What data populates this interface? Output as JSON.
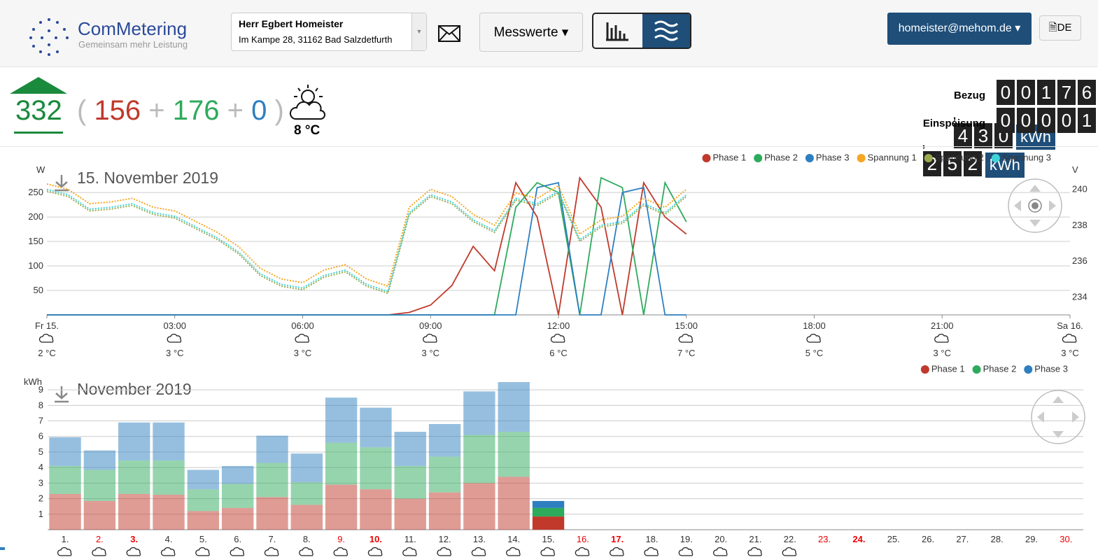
{
  "header": {
    "logo": "ComMetering",
    "slogan": "Gemeinsam mehr Leistung",
    "customer_name": "Herr Egbert Homeister",
    "customer_address": "Im Kampe 28, 31162 Bad Salzdetfurth",
    "menu": "Messwerte",
    "user": "homeister@mehom.de",
    "language": "DE"
  },
  "summary": {
    "total": "332",
    "phase1": "156",
    "phase2": "176",
    "phase3": "0",
    "temperature": "8 °C"
  },
  "meters": [
    {
      "label": "Bezug",
      "integer": "00176",
      "decimal": "430",
      "unit": "kWh"
    },
    {
      "label": "Einspeisung",
      "integer": "00001",
      "decimal": "252",
      "unit": "kWh"
    }
  ],
  "chart_data": [
    {
      "type": "line",
      "title": "15. November 2019",
      "y_label": "W",
      "y2_label": "V",
      "x": [
        0,
        0.5,
        1,
        1.5,
        2,
        2.5,
        3,
        3.5,
        4,
        4.5,
        5,
        5.5,
        6,
        6.5,
        7,
        7.5,
        8,
        8.5,
        9,
        9.5,
        10,
        10.5,
        11,
        11.5,
        12,
        12.5,
        13,
        13.5,
        14,
        14.5,
        15
      ],
      "xlim": [
        0,
        24
      ],
      "xticks": [
        {
          "value": 0,
          "label": "Fr 15."
        },
        {
          "value": 3,
          "label": "03:00"
        },
        {
          "value": 6,
          "label": "06:00"
        },
        {
          "value": 9,
          "label": "09:00"
        },
        {
          "value": 12,
          "label": "12:00"
        },
        {
          "value": 15,
          "label": "15:00"
        },
        {
          "value": 18,
          "label": "18:00"
        },
        {
          "value": 21,
          "label": "21:00"
        },
        {
          "value": 24,
          "label": "Sa 16."
        }
      ],
      "weather": [
        "2 °C",
        "3 °C",
        "3 °C",
        "3 °C",
        "6 °C",
        "7 °C",
        "5 °C",
        "3 °C",
        "3 °C"
      ],
      "ylim": [
        0,
        293
      ],
      "yticks": [
        50,
        100,
        150,
        200,
        250
      ],
      "y2lim": [
        233,
        241
      ],
      "y2ticks": [
        234,
        236,
        238,
        240
      ],
      "grid": true,
      "legend": "top-right",
      "series": [
        {
          "name": "Phase 1",
          "color": "#c0392b",
          "values": [
            0,
            0,
            0,
            0,
            0,
            0,
            0,
            0,
            0,
            0,
            0,
            0,
            0,
            0,
            0,
            0,
            0,
            5,
            20,
            60,
            140,
            90,
            270,
            200,
            0,
            280,
            220,
            0,
            270,
            200,
            165
          ]
        },
        {
          "name": "Phase 2",
          "color": "#2eaa5c",
          "values": [
            0,
            0,
            0,
            0,
            0,
            0,
            0,
            0,
            0,
            0,
            0,
            0,
            0,
            0,
            0,
            0,
            0,
            0,
            0,
            0,
            0,
            0,
            220,
            270,
            250,
            0,
            280,
            260,
            0,
            270,
            190
          ]
        },
        {
          "name": "Phase 3",
          "color": "#2e7fc0",
          "values": [
            0,
            0,
            0,
            0,
            0,
            0,
            0,
            0,
            0,
            0,
            0,
            0,
            0,
            0,
            0,
            0,
            0,
            0,
            0,
            0,
            0,
            0,
            0,
            260,
            270,
            0,
            0,
            250,
            260,
            0,
            0
          ]
        },
        {
          "name": "Spannung 1",
          "color": "#f5a623",
          "axis": "y2",
          "style": "dotted",
          "values": [
            240.3,
            240.0,
            239.2,
            239.3,
            239.5,
            239.0,
            238.8,
            238.2,
            237.6,
            236.8,
            235.6,
            235.0,
            234.8,
            235.5,
            235.8,
            235.0,
            234.6,
            239.0,
            240.0,
            239.6,
            238.6,
            238.0,
            239.8,
            239.5,
            240.2,
            237.5,
            238.3,
            238.5,
            239.5,
            239.0,
            240.0
          ]
        },
        {
          "name": "Spannung 2",
          "color": "#9aab4f",
          "axis": "y2",
          "style": "dotted",
          "values": [
            239.9,
            239.6,
            238.8,
            238.9,
            239.1,
            238.6,
            238.4,
            237.8,
            237.2,
            236.4,
            235.2,
            234.6,
            234.4,
            235.1,
            235.4,
            234.6,
            234.2,
            238.6,
            239.6,
            239.2,
            238.2,
            237.6,
            239.4,
            239.1,
            239.8,
            237.1,
            237.9,
            238.1,
            239.1,
            238.6,
            239.6
          ]
        },
        {
          "name": "Spannung 3",
          "color": "#3fd3d8",
          "axis": "y2",
          "style": "dotted",
          "values": [
            240.0,
            239.7,
            238.9,
            239.0,
            239.2,
            238.7,
            238.5,
            237.9,
            237.3,
            236.5,
            235.3,
            234.7,
            234.5,
            235.2,
            235.5,
            234.7,
            234.3,
            238.7,
            239.7,
            239.3,
            238.3,
            237.7,
            239.5,
            239.2,
            239.9,
            237.2,
            238.0,
            238.2,
            239.2,
            238.7,
            239.7
          ]
        }
      ]
    },
    {
      "type": "stacked_bar",
      "title": "November 2019",
      "y_label": "kWh",
      "categories": [
        "1.",
        "2.",
        "3.",
        "4.",
        "5.",
        "6.",
        "7.",
        "8.",
        "9.",
        "10.",
        "11.",
        "12.",
        "13.",
        "14.",
        "15.",
        "16.",
        "17.",
        "18.",
        "19.",
        "20.",
        "21.",
        "22.",
        "23.",
        "24.",
        "25.",
        "26.",
        "27.",
        "28.",
        "29.",
        "30."
      ],
      "ylim": [
        0,
        9.5
      ],
      "yticks": [
        1,
        2,
        3,
        4,
        5,
        6,
        7,
        8,
        9
      ],
      "grid": true,
      "legend": "top-right",
      "series": [
        {
          "name": "Phase 1",
          "color": "#c0392b",
          "values": [
            2.3,
            1.85,
            2.3,
            2.25,
            1.2,
            1.4,
            2.1,
            1.6,
            2.9,
            2.6,
            2.0,
            2.4,
            3.0,
            3.4,
            0.85,
            null,
            null,
            null,
            null,
            null,
            null,
            null,
            null,
            null,
            null,
            null,
            null,
            null,
            null,
            null
          ]
        },
        {
          "name": "Phase 2",
          "color": "#2eaa5c",
          "values": [
            1.8,
            2.0,
            2.15,
            2.2,
            1.4,
            1.55,
            2.2,
            1.45,
            2.7,
            2.7,
            2.1,
            2.3,
            3.1,
            2.9,
            0.55,
            null,
            null,
            null,
            null,
            null,
            null,
            null,
            null,
            null,
            null,
            null,
            null,
            null,
            null,
            null
          ]
        },
        {
          "name": "Phase 3",
          "color": "#2e7fc0",
          "values": [
            1.85,
            1.25,
            2.45,
            2.45,
            1.25,
            1.15,
            1.75,
            1.85,
            2.9,
            2.55,
            2.2,
            2.1,
            2.8,
            3.2,
            0.45,
            null,
            null,
            null,
            null,
            null,
            null,
            null,
            null,
            null,
            null,
            null,
            null,
            null,
            null,
            null
          ]
        }
      ]
    }
  ]
}
